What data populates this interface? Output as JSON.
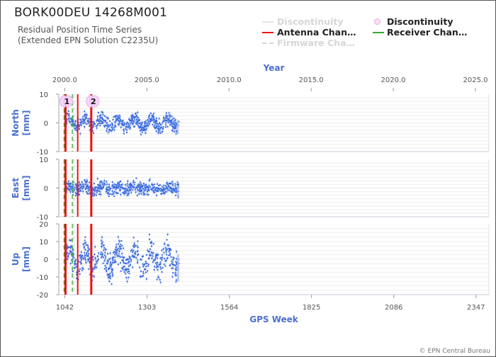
{
  "title": "BORK00DEU 14268M001",
  "subtitle_lines": [
    "Residual Position Time Series",
    "(Extended EPN Solution C2235U)"
  ],
  "legend": {
    "discontinuity_line": "Discontinuity",
    "antenna_change": "Antenna Chan…",
    "firmware_change": "Firmware Cha…",
    "discontinuity_marker": "Discontinuity",
    "receiver_change": "Receiver Chan…"
  },
  "footer": "© EPN Central Bureau",
  "colors": {
    "axis_text": "#4a6fce",
    "points": "#3366dd",
    "antenna": "#ee1111",
    "receiver": "#33aa33",
    "firmware": "#bbbbbb",
    "discontinuity_marker": "#f0c8f0"
  },
  "chart_data": {
    "type": "scatter",
    "top_axis": {
      "label": "Year",
      "ticks": [
        "2000.0",
        "2005.0",
        "2010.0",
        "2015.0",
        "2020.0",
        "2025.0"
      ],
      "range": [
        1999.64,
        2025.82
      ]
    },
    "bottom_axis": {
      "label": "GPS Week",
      "ticks": [
        "1042",
        "1303",
        "1564",
        "1825",
        "2086",
        "2347"
      ],
      "range": [
        1023,
        2388
      ]
    },
    "panels": [
      {
        "name": "North",
        "ylabel": [
          "North",
          "[mm]"
        ],
        "ylim": [
          -10,
          10
        ],
        "yticks": [
          "10",
          "0",
          "-10"
        ],
        "tick_values": [
          10,
          0,
          -10
        ],
        "data_range": [
          -4.5,
          4.5
        ]
      },
      {
        "name": "East",
        "ylabel": [
          "East",
          "[mm]"
        ],
        "ylim": [
          -10,
          10
        ],
        "yticks": [
          "10",
          "0",
          "-10"
        ],
        "tick_values": [
          10,
          0,
          -10
        ],
        "data_range": [
          -4,
          4
        ]
      },
      {
        "name": "Up",
        "ylabel": [
          "Up",
          "[mm]"
        ],
        "ylim": [
          -20,
          20
        ],
        "yticks": [
          "20",
          "10",
          "0",
          "-10",
          "-20"
        ],
        "tick_values": [
          20,
          10,
          0,
          -10,
          -20
        ],
        "data_range": [
          -14,
          14
        ]
      }
    ],
    "data_span_weeks": [
      1042,
      1404
    ],
    "events": {
      "antenna_change_weeks": [
        1042,
        1083,
        1126
      ],
      "receiver_change_weeks": [
        1042,
        1066
      ],
      "discontinuity_markers": [
        {
          "label": "1",
          "week": 1042
        },
        {
          "label": "2",
          "week": 1126
        }
      ]
    },
    "grid": true,
    "legend_position": "top-right"
  }
}
